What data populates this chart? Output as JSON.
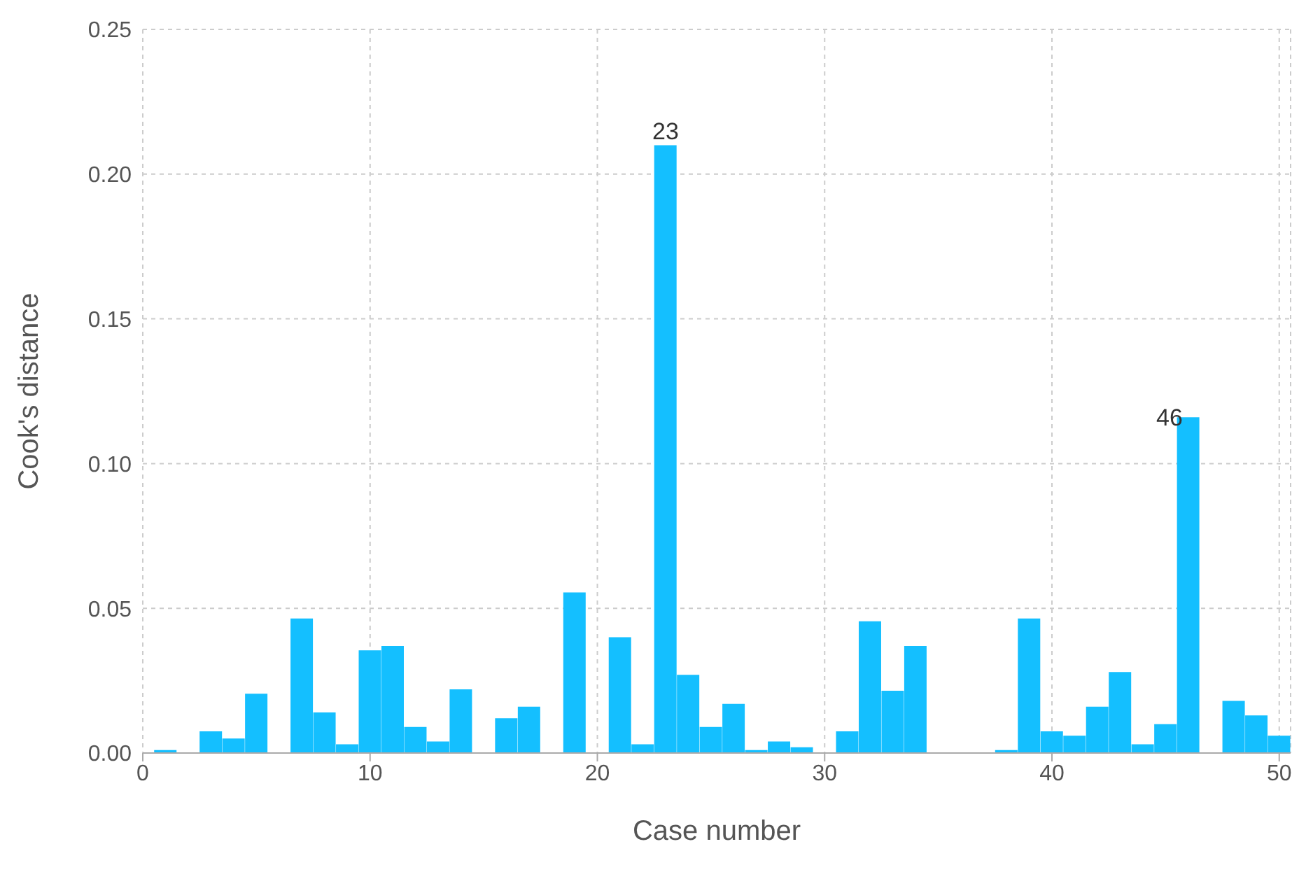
{
  "chart_data": {
    "type": "bar",
    "xlabel": "Case number",
    "ylabel": "Cook's distance",
    "x": [
      1,
      2,
      3,
      4,
      5,
      6,
      7,
      8,
      9,
      10,
      11,
      12,
      13,
      14,
      15,
      16,
      17,
      18,
      19,
      20,
      21,
      22,
      23,
      24,
      25,
      26,
      27,
      28,
      29,
      30,
      31,
      32,
      33,
      34,
      35,
      36,
      37,
      38,
      39,
      40,
      41,
      42,
      43,
      44,
      45,
      46,
      47,
      48,
      49,
      50
    ],
    "values": [
      0.001,
      0,
      0.0075,
      0.005,
      0.0205,
      0,
      0.0465,
      0.014,
      0.003,
      0.0355,
      0.037,
      0.009,
      0.004,
      0.022,
      0,
      0.012,
      0.016,
      0,
      0.0555,
      0,
      0.04,
      0.003,
      0.21,
      0.027,
      0.009,
      0.017,
      0.001,
      0.004,
      0.002,
      0,
      0.0075,
      0.0455,
      0.0215,
      0.037,
      0,
      0,
      0,
      0.001,
      0.0465,
      0.0075,
      0.006,
      0.016,
      0.028,
      0.003,
      0.01,
      0.116,
      0,
      0.018,
      0.013,
      0.006
    ],
    "color": "#14bfff",
    "xlim": [
      0,
      50.5
    ],
    "xticks": [
      0,
      10,
      20,
      30,
      40,
      50
    ],
    "ylim": [
      0,
      0.25
    ],
    "yticks": [
      {
        "value": 0,
        "label": "0.00"
      },
      {
        "value": 0.05,
        "label": "0.05"
      },
      {
        "value": 0.1,
        "label": "0.10"
      },
      {
        "value": 0.15,
        "label": "0.15"
      },
      {
        "value": 0.2,
        "label": "0.20"
      },
      {
        "value": 0.25,
        "label": "0.25"
      }
    ],
    "grid": true,
    "annotations": [
      {
        "text": "23",
        "x": 23,
        "y": 0.21
      },
      {
        "text": "46",
        "x": 46,
        "y": 0.116
      }
    ]
  }
}
